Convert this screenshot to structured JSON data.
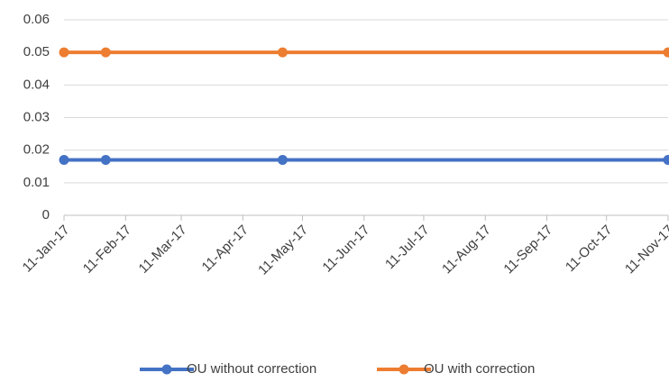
{
  "chart_data": {
    "type": "line",
    "x": [
      "2017-01-11",
      "2017-02-01",
      "2017-05-01",
      "2017-11-11"
    ],
    "series": [
      {
        "name": "OU without correction",
        "color": "#4472c4",
        "values": [
          0.017,
          0.017,
          0.017,
          0.017
        ]
      },
      {
        "name": "OU with correction",
        "color": "#ed7d31",
        "values": [
          0.05,
          0.05,
          0.05,
          0.05
        ]
      }
    ],
    "xlim": [
      "2017-01-11",
      "2017-11-11"
    ],
    "xticks": [
      {
        "value": "2017-01-11",
        "label": "11-Jan-17"
      },
      {
        "value": "2017-02-11",
        "label": "11-Feb-17"
      },
      {
        "value": "2017-03-11",
        "label": "11-Mar-17"
      },
      {
        "value": "2017-04-11",
        "label": "11-Apr-17"
      },
      {
        "value": "2017-05-11",
        "label": "11-May-17"
      },
      {
        "value": "2017-06-11",
        "label": "11-Jun-17"
      },
      {
        "value": "2017-07-11",
        "label": "11-Jul-17"
      },
      {
        "value": "2017-08-11",
        "label": "11-Aug-17"
      },
      {
        "value": "2017-09-11",
        "label": "11-Sep-17"
      },
      {
        "value": "2017-10-11",
        "label": "11-Oct-17"
      },
      {
        "value": "2017-11-11",
        "label": "11-Nov-17"
      }
    ],
    "ylim": [
      0,
      0.06
    ],
    "yticks": [
      0,
      0.01,
      0.02,
      0.03,
      0.04,
      0.05,
      0.06
    ],
    "grid": true,
    "legend": "bottom"
  }
}
